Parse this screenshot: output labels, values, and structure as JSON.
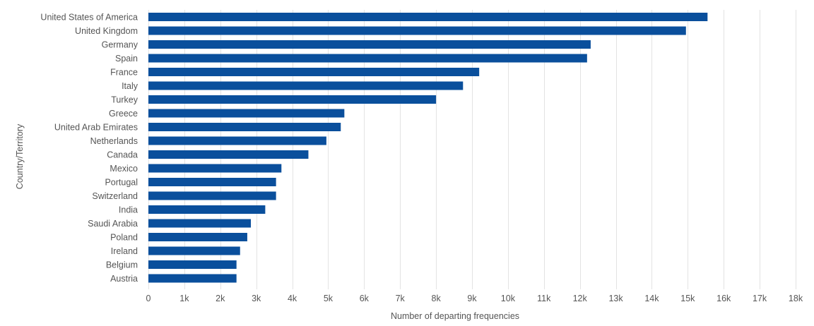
{
  "chart_data": {
    "type": "bar",
    "orientation": "horizontal",
    "title": "",
    "xlabel": "Number of departing frequencies",
    "ylabel": "Country/Territory",
    "xlim": [
      0,
      18000
    ],
    "grid": true,
    "bar_color": "#0a4f9c",
    "categories": [
      "United States of America",
      "United Kingdom",
      "Germany",
      "Spain",
      "France",
      "Italy",
      "Turkey",
      "Greece",
      "United Arab Emirates",
      "Netherlands",
      "Canada",
      "Mexico",
      "Portugal",
      "Switzerland",
      "India",
      "Saudi Arabia",
      "Poland",
      "Ireland",
      "Belgium",
      "Austria"
    ],
    "values": [
      15550,
      14950,
      12300,
      12200,
      9200,
      8750,
      8000,
      5450,
      5350,
      4950,
      4450,
      3700,
      3550,
      3550,
      3250,
      2850,
      2750,
      2550,
      2450,
      2450
    ],
    "x_ticks": [
      0,
      1000,
      2000,
      3000,
      4000,
      5000,
      6000,
      7000,
      8000,
      9000,
      10000,
      11000,
      12000,
      13000,
      14000,
      15000,
      16000,
      17000,
      18000
    ],
    "x_tick_labels": [
      "0",
      "1k",
      "2k",
      "3k",
      "4k",
      "5k",
      "6k",
      "7k",
      "8k",
      "9k",
      "10k",
      "11k",
      "12k",
      "13k",
      "14k",
      "15k",
      "16k",
      "17k",
      "18k"
    ]
  }
}
